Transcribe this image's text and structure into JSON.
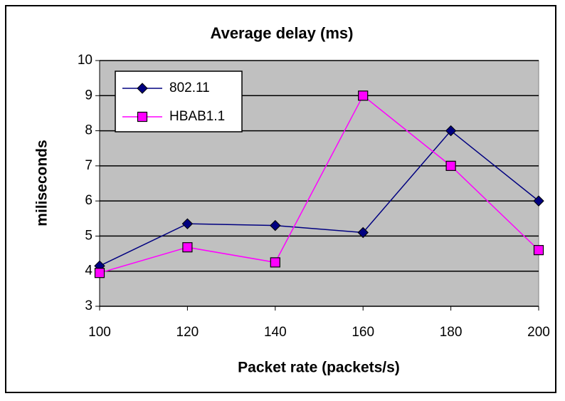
{
  "chart_data": {
    "type": "line",
    "title": "Average delay (ms)",
    "x_label": "Packet rate (packets/s)",
    "y_label": "miliseconds",
    "x": [
      100,
      120,
      140,
      160,
      180,
      200
    ],
    "series": [
      {
        "name": "802.11",
        "color": "#000080",
        "marker": "diamond",
        "values": [
          4.15,
          5.35,
          5.3,
          5.1,
          8.0,
          6.0
        ]
      },
      {
        "name": "HBAB1.1",
        "color": "#ff00ff",
        "marker": "square",
        "values": [
          3.95,
          4.68,
          4.25,
          9.0,
          7.0,
          4.6
        ]
      }
    ],
    "xlim": [
      100,
      200
    ],
    "xticks": [
      100,
      120,
      140,
      160,
      180,
      200
    ],
    "ylim": [
      3,
      10
    ],
    "yticks": [
      3,
      4,
      5,
      6,
      7,
      8,
      9,
      10
    ],
    "grid": true,
    "legend": "upper left"
  }
}
